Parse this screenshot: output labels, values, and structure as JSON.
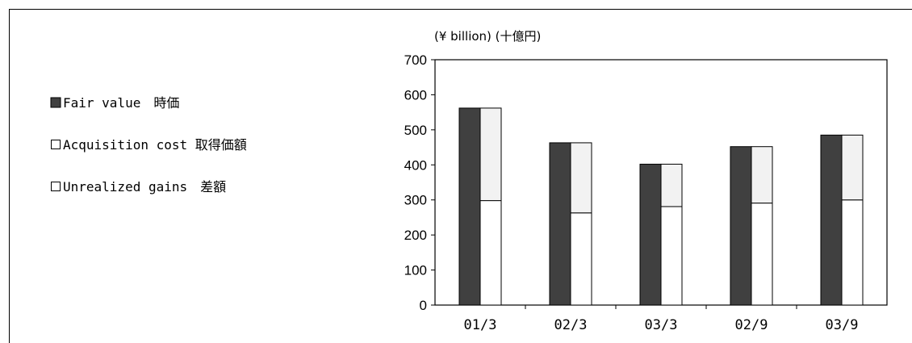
{
  "legend": {
    "items": [
      {
        "label": "Fair value　時価",
        "swatch": "filled",
        "color": "#404040"
      },
      {
        "label": "Acquisition cost 取得価額",
        "swatch": "outline",
        "color": "#ffffff"
      },
      {
        "label": "Unrealized gains　差額",
        "swatch": "outline",
        "color": "#f2f2f2"
      }
    ]
  },
  "chart_data": {
    "type": "bar",
    "unit_label": "(¥ billion) (十億円)",
    "categories": [
      "01/3",
      "02/3",
      "03/3",
      "02/9",
      "03/9"
    ],
    "series": [
      {
        "name": "Fair value",
        "values": [
          562,
          463,
          402,
          452,
          485
        ],
        "color": "#404040",
        "stack": "left"
      },
      {
        "name": "Acquisition cost",
        "values": [
          298,
          263,
          281,
          291,
          300
        ],
        "color": "#ffffff",
        "stack": "right"
      },
      {
        "name": "Unrealized gains",
        "values": [
          264,
          200,
          121,
          161,
          185
        ],
        "color": "#f2f2f2",
        "stack": "right"
      }
    ],
    "ylim": [
      0,
      700
    ],
    "yticks": [
      0,
      100,
      200,
      300,
      400,
      500,
      600,
      700
    ],
    "grid": false,
    "legend_position": "left"
  }
}
